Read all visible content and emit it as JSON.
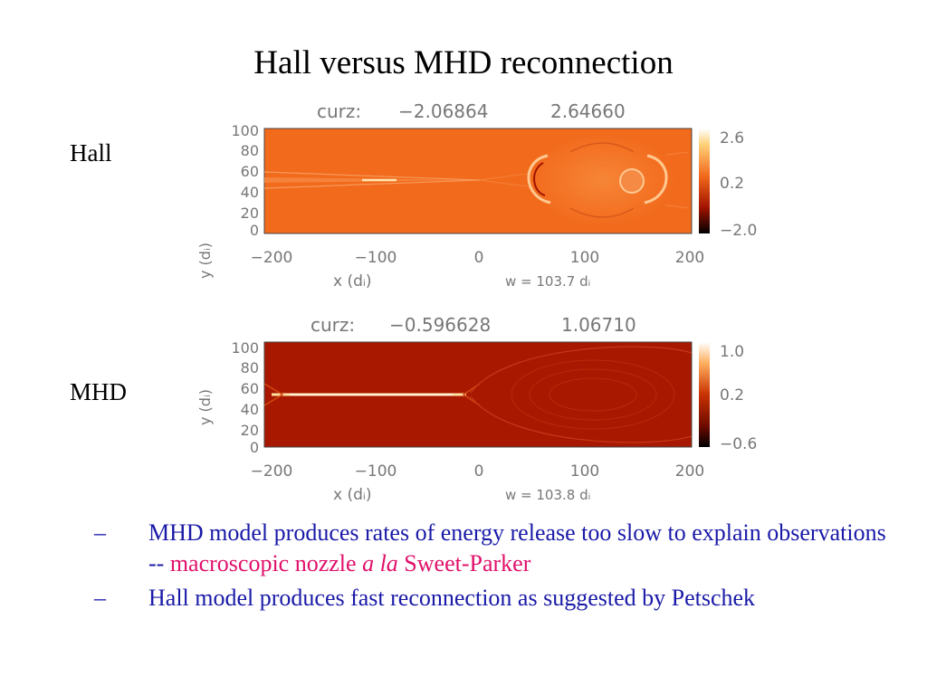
{
  "slide": {
    "title": "Hall versus MHD reconnection"
  },
  "panels": [
    {
      "label": "Hall",
      "header_var": "curz:",
      "header_min": "−2.06864",
      "header_max": "2.64660",
      "y_axis_label": "y (dᵢ)",
      "y_ticks": [
        "100",
        "80",
        "60",
        "40",
        "20",
        "0"
      ],
      "x_ticks": [
        "−200",
        "−100",
        "0",
        "100",
        "200"
      ],
      "x_axis_label": "x (dᵢ)",
      "width_note": "w = 103.7 dᵢ",
      "colorbar_ticks": [
        "2.6",
        "0.2",
        "−2.0"
      ]
    },
    {
      "label": "MHD",
      "header_var": "curz:",
      "header_min": "−0.596628",
      "header_max": "1.06710",
      "y_axis_label": "y (dᵢ)",
      "y_ticks": [
        "100",
        "80",
        "60",
        "40",
        "20",
        "0"
      ],
      "x_ticks": [
        "−200",
        "−100",
        "0",
        "100",
        "200"
      ],
      "x_axis_label": "x (dᵢ)",
      "width_note": "w = 103.8 dᵢ",
      "colorbar_ticks": [
        "1.0",
        "0.2",
        "−0.6"
      ]
    }
  ],
  "bullets": [
    {
      "dash": "–",
      "text_a": "MHD model produces rates of energy release too slow to explain observations -- ",
      "text_b": "macroscopic nozzle ",
      "text_c": "a la",
      "text_d": " Sweet-Parker"
    },
    {
      "dash": "–",
      "text_a": "Hall model produces fast reconnection as suggested by Petschek"
    }
  ],
  "colors": {
    "bullet_text": "#1a1aa8",
    "highlight": "#e0106a",
    "hall_field": "#f26a1c",
    "mhd_field": "#a81800"
  }
}
